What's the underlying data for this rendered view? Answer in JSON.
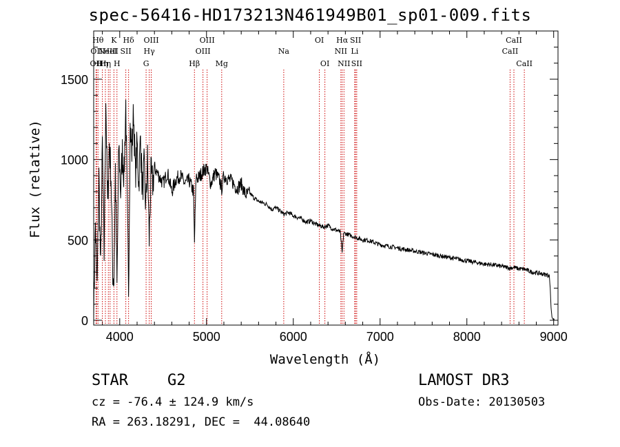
{
  "chart_data": {
    "type": "line",
    "title": "spec-56416-HD173213N461949B01_sp01-009.fits",
    "xlabel": "Wavelength (Å)",
    "ylabel": "Flux (relative)",
    "xlim": [
      3700,
      9050
    ],
    "ylim": [
      -30,
      1800
    ],
    "xticks": [
      4000,
      5000,
      6000,
      7000,
      8000,
      9000
    ],
    "yticks": [
      0,
      500,
      1000,
      1500
    ],
    "xtick_labels": [
      "4000",
      "5000",
      "6000",
      "7000",
      "8000",
      "9000"
    ],
    "ytick_labels": [
      "0",
      "500",
      "1000",
      "1500"
    ],
    "line_color": "#000000",
    "marker_color": "#cc0000",
    "series": [
      {
        "name": "spectrum",
        "x": [
          3700,
          3720,
          3740,
          3760,
          3780,
          3800,
          3820,
          3840,
          3860,
          3880,
          3900,
          3920,
          3933,
          3950,
          3968,
          3990,
          4010,
          4030,
          4050,
          4070,
          4090,
          4102,
          4120,
          4140,
          4160,
          4180,
          4200,
          4220,
          4240,
          4260,
          4280,
          4300,
          4320,
          4340,
          4360,
          4380,
          4400,
          4450,
          4500,
          4550,
          4600,
          4650,
          4700,
          4750,
          4800,
          4850,
          4861,
          4880,
          4900,
          4950,
          5000,
          5050,
          5100,
          5150,
          5175,
          5200,
          5250,
          5300,
          5350,
          5400,
          5450,
          5500,
          5550,
          5600,
          5650,
          5700,
          5750,
          5800,
          5850,
          5890,
          5950,
          6000,
          6050,
          6100,
          6150,
          6200,
          6250,
          6300,
          6350,
          6400,
          6450,
          6500,
          6540,
          6563,
          6580,
          6600,
          6650,
          6700,
          6750,
          6800,
          6850,
          6900,
          6950,
          7000,
          7100,
          7200,
          7300,
          7400,
          7500,
          7600,
          7700,
          7800,
          7900,
          8000,
          8100,
          8200,
          8300,
          8400,
          8500,
          8542,
          8600,
          8662,
          8700,
          8750,
          8800,
          8850,
          8900,
          8950,
          8960,
          8970,
          8980,
          8990,
          9000,
          9010
        ],
        "values": [
          20,
          600,
          200,
          900,
          300,
          1100,
          400,
          1400,
          700,
          1100,
          900,
          300,
          250,
          950,
          200,
          1100,
          800,
          1050,
          900,
          1350,
          600,
          200,
          1200,
          1050,
          1300,
          900,
          1100,
          850,
          1150,
          800,
          950,
          700,
          1000,
          500,
          900,
          850,
          950,
          900,
          850,
          920,
          800,
          880,
          900,
          850,
          870,
          800,
          480,
          900,
          880,
          920,
          950,
          850,
          920,
          870,
          820,
          900,
          880,
          860,
          820,
          850,
          780,
          790,
          760,
          740,
          730,
          720,
          690,
          700,
          680,
          660,
          670,
          650,
          640,
          630,
          610,
          620,
          600,
          590,
          580,
          590,
          570,
          560,
          550,
          420,
          540,
          540,
          530,
          520,
          510,
          500,
          500,
          490,
          480,
          470,
          460,
          450,
          440,
          430,
          420,
          410,
          400,
          390,
          380,
          370,
          360,
          350,
          345,
          335,
          325,
          330,
          320,
          318,
          310,
          300,
          295,
          290,
          285,
          280,
          200,
          80,
          20,
          8,
          5,
          5
        ]
      }
    ],
    "line_markers": [
      {
        "wavelength": 3727,
        "label": "OII",
        "level": 3
      },
      {
        "wavelength": 3734,
        "label": "OII",
        "level": 2
      },
      {
        "wavelength": 3750,
        "label": "Hθ",
        "level": 1
      },
      {
        "wavelength": 3800,
        "label": "Hη",
        "level": 3
      },
      {
        "wavelength": 3835,
        "label": "Hη",
        "level": 3
      },
      {
        "wavelength": 3869,
        "label": "NeIII",
        "level": 2
      },
      {
        "wavelength": 3889,
        "label": "HeI",
        "level": 2
      },
      {
        "wavelength": 3933,
        "label": "K",
        "level": 1
      },
      {
        "wavelength": 3968,
        "label": "H",
        "level": 3
      },
      {
        "wavelength": 4070,
        "label": "SII",
        "level": 2
      },
      {
        "wavelength": 4102,
        "label": "Hδ",
        "level": 1
      },
      {
        "wavelength": 4304,
        "label": "G",
        "level": 3
      },
      {
        "wavelength": 4340,
        "label": "Hγ",
        "level": 2
      },
      {
        "wavelength": 4363,
        "label": "OIII",
        "level": 1
      },
      {
        "wavelength": 4861,
        "label": "Hβ",
        "level": 3
      },
      {
        "wavelength": 4959,
        "label": "OIII",
        "level": 2
      },
      {
        "wavelength": 5007,
        "label": "OIII",
        "level": 1
      },
      {
        "wavelength": 5175,
        "label": "Mg",
        "level": 3
      },
      {
        "wavelength": 5890,
        "label": "Na",
        "level": 2
      },
      {
        "wavelength": 6300,
        "label": "OI",
        "level": 1
      },
      {
        "wavelength": 6364,
        "label": "OI",
        "level": 3
      },
      {
        "wavelength": 6548,
        "label": "NII",
        "level": 2
      },
      {
        "wavelength": 6563,
        "label": "Hα",
        "level": 1
      },
      {
        "wavelength": 6584,
        "label": "NII",
        "level": 3
      },
      {
        "wavelength": 6707,
        "label": "Li",
        "level": 2
      },
      {
        "wavelength": 6717,
        "label": "SII",
        "level": 1
      },
      {
        "wavelength": 6731,
        "label": "SII",
        "level": 3
      },
      {
        "wavelength": 8498,
        "label": "CaII",
        "level": 2
      },
      {
        "wavelength": 8542,
        "label": "CaII",
        "level": 1
      },
      {
        "wavelength": 8662,
        "label": "CaII",
        "level": 3
      }
    ]
  },
  "info": {
    "object_class": "STAR",
    "subclass": "G2",
    "survey": "LAMOST DR3",
    "redshift_line": "cz = -76.4 ± 124.9 km/s",
    "obs_date_line": "Obs-Date: 20130503",
    "coords_line": "RA = 263.18291, DEC =  44.08640"
  }
}
